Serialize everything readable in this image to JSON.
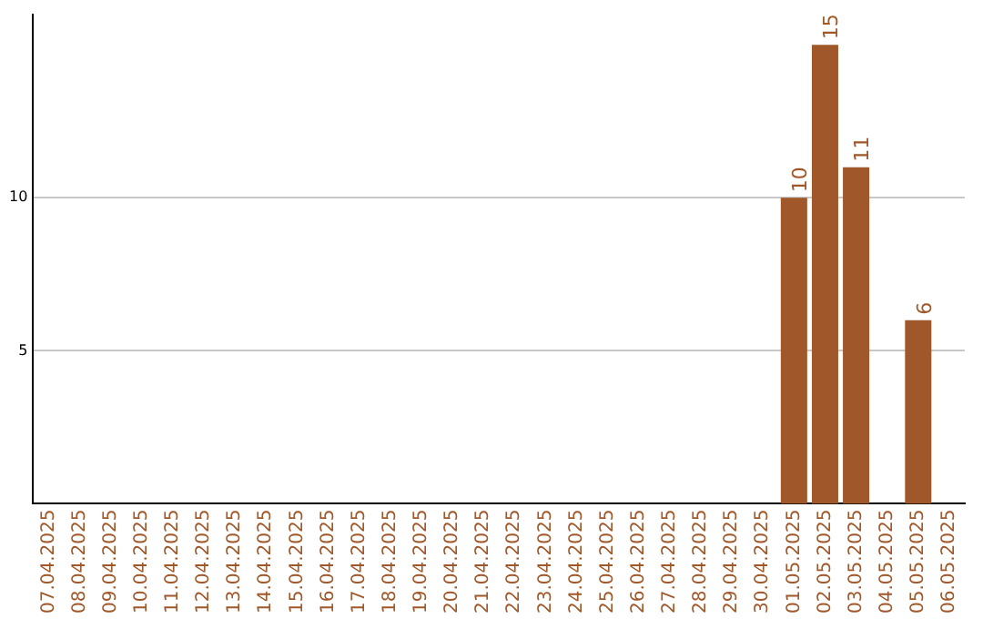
{
  "chart_data": {
    "type": "bar",
    "categories": [
      "07.04.2025",
      "08.04.2025",
      "09.04.2025",
      "10.04.2025",
      "11.04.2025",
      "12.04.2025",
      "13.04.2025",
      "14.04.2025",
      "15.04.2025",
      "16.04.2025",
      "17.04.2025",
      "18.04.2025",
      "19.04.2025",
      "20.04.2025",
      "21.04.2025",
      "22.04.2025",
      "23.04.2025",
      "24.04.2025",
      "25.04.2025",
      "26.04.2025",
      "27.04.2025",
      "28.04.2025",
      "29.04.2025",
      "30.04.2025",
      "01.05.2025",
      "02.05.2025",
      "03.05.2025",
      "04.05.2025",
      "05.05.2025",
      "06.05.2025"
    ],
    "values": [
      null,
      null,
      null,
      null,
      null,
      null,
      null,
      null,
      null,
      null,
      null,
      null,
      null,
      null,
      null,
      null,
      null,
      null,
      null,
      null,
      null,
      null,
      null,
      null,
      10,
      15,
      11,
      null,
      6,
      null
    ],
    "color": "#a0582a",
    "ylim": [
      0,
      16
    ],
    "yticks": [
      5,
      10
    ],
    "grid": "y",
    "data_labels": true,
    "legend": false
  }
}
